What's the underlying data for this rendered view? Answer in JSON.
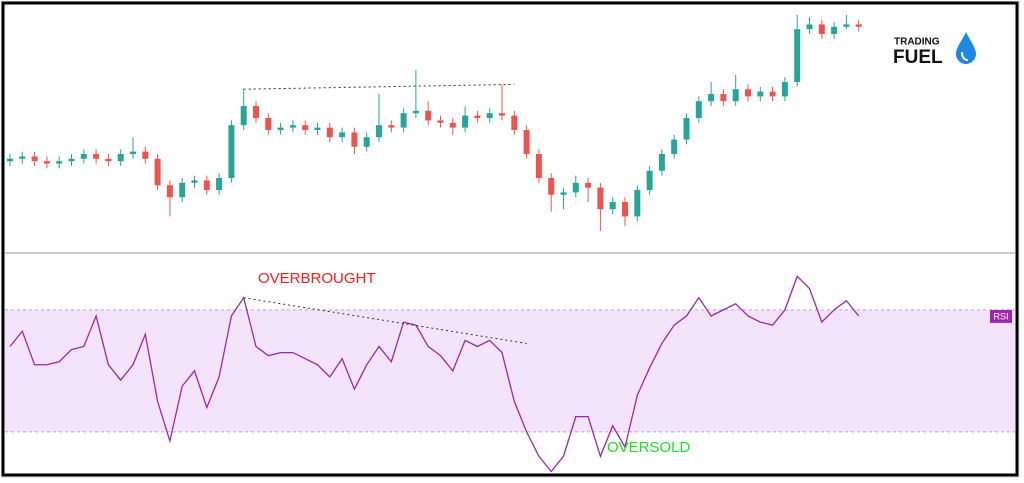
{
  "logo": {
    "line1": "TRADING",
    "line2": "FUEL"
  },
  "chart_data": [
    {
      "type": "candlestick",
      "open": [
        37,
        38,
        39,
        37,
        36,
        37,
        38,
        40,
        38,
        37,
        40,
        41,
        38,
        27,
        22,
        28,
        29,
        25,
        30,
        52,
        60,
        55,
        50,
        51,
        52,
        50,
        51,
        47,
        49,
        43,
        47,
        52,
        51,
        57,
        58,
        54,
        53,
        51,
        56,
        55,
        57,
        56,
        50,
        40,
        30,
        23,
        24,
        28,
        26,
        17,
        20,
        14,
        25,
        33,
        40,
        46,
        55,
        62,
        65,
        62,
        67,
        64,
        66,
        64,
        70,
        92,
        94,
        90,
        93,
        94
      ],
      "high": [
        40,
        41,
        41,
        39,
        39,
        40,
        42,
        42,
        40,
        42,
        47,
        43,
        40,
        29,
        30,
        31,
        31,
        32,
        54,
        67,
        62,
        57,
        53,
        54,
        54,
        53,
        53,
        51,
        51,
        49,
        65,
        54,
        59,
        75,
        62,
        56,
        55,
        60,
        58,
        59,
        69,
        58,
        52,
        42,
        32,
        26,
        31,
        30,
        28,
        22,
        22,
        27,
        35,
        42,
        48,
        57,
        64,
        70,
        67,
        73,
        69,
        68,
        68,
        72,
        98,
        97,
        96,
        95,
        98,
        96
      ],
      "low": [
        35,
        36,
        35,
        34,
        34,
        35,
        36,
        36,
        35,
        35,
        38,
        36,
        25,
        14,
        20,
        26,
        23,
        23,
        28,
        50,
        53,
        48,
        48,
        49,
        48,
        48,
        45,
        45,
        40,
        41,
        45,
        49,
        49,
        55,
        52,
        51,
        48,
        49,
        53,
        53,
        54,
        48,
        38,
        28,
        16,
        17,
        22,
        20,
        8,
        15,
        10,
        12,
        23,
        31,
        38,
        44,
        53,
        60,
        60,
        60,
        62,
        62,
        62,
        62,
        68,
        90,
        88,
        88,
        92,
        91
      ],
      "close": [
        38,
        39,
        37,
        36,
        37,
        38,
        40,
        38,
        37,
        40,
        41,
        38,
        27,
        22,
        28,
        29,
        25,
        30,
        52,
        60,
        55,
        50,
        51,
        52,
        50,
        51,
        47,
        49,
        43,
        47,
        52,
        51,
        57,
        58,
        54,
        53,
        51,
        56,
        55,
        57,
        56,
        50,
        40,
        30,
        23,
        24,
        28,
        26,
        17,
        20,
        14,
        25,
        33,
        40,
        46,
        55,
        62,
        65,
        62,
        67,
        64,
        66,
        64,
        70,
        92,
        94,
        90,
        93,
        94,
        93
      ],
      "ylim": [
        0,
        100
      ],
      "up_color": "#26a69a",
      "down_color": "#ef5350",
      "trendline": {
        "x": [
          19,
          41
        ],
        "values": [
          67,
          69
        ]
      }
    },
    {
      "type": "line",
      "label": "RSI",
      "color": "#9c27b0",
      "band_color": "#f3e4fb",
      "values": [
        58,
        63,
        52,
        52,
        53,
        57,
        58,
        68,
        52,
        47,
        52,
        62,
        40,
        27,
        45,
        50,
        38,
        48,
        68,
        74,
        58,
        55,
        56,
        56,
        54,
        52,
        48,
        54,
        44,
        52,
        58,
        53,
        66,
        65,
        58,
        55,
        50,
        60,
        58,
        60,
        56,
        40,
        30,
        22,
        17,
        22,
        35,
        35,
        22,
        32,
        25,
        42,
        51,
        59,
        65,
        68,
        74,
        68,
        70,
        72,
        68,
        66,
        65,
        70,
        81,
        77,
        66,
        70,
        73,
        68
      ],
      "ylim": [
        17.5,
        88
      ],
      "levels": [
        30,
        70
      ],
      "trendline": {
        "x": [
          19,
          42
        ],
        "values": [
          74,
          59
        ]
      },
      "annotations": [
        {
          "text": "OVERBROUGHT",
          "color": "#ff1a1a"
        },
        {
          "text": "OVERSOLD",
          "color": "#22dd22"
        }
      ]
    }
  ]
}
